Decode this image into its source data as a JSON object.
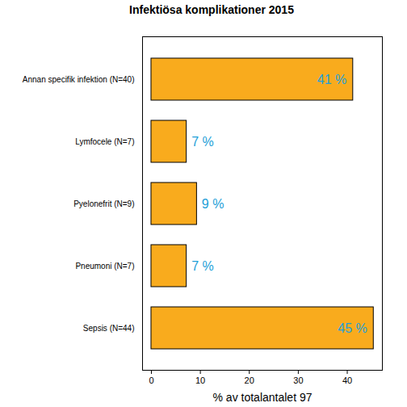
{
  "chart_data": {
    "type": "bar",
    "title": "Infektiösa komplikationer 2015",
    "orientation": "horizontal",
    "categories": [
      "Annan specifik infektion (N=40)",
      "Lymfocele (N=7)",
      "Pyelonefrit (N=9)",
      "Pneumoni (N=7)",
      "Sepsis (N=44)"
    ],
    "values": [
      41.2,
      7.2,
      9.3,
      7.2,
      45.4
    ],
    "value_labels": [
      "41 %",
      "7 %",
      "9 %",
      "7 %",
      "45 %"
    ],
    "data_labels": true,
    "color": "#f9ab1d",
    "x_label": "% av totalantalet 97",
    "xlim": [
      -1.81,
      47.17
    ],
    "xticks": [
      0,
      10,
      20,
      30,
      40
    ],
    "grid": false
  }
}
